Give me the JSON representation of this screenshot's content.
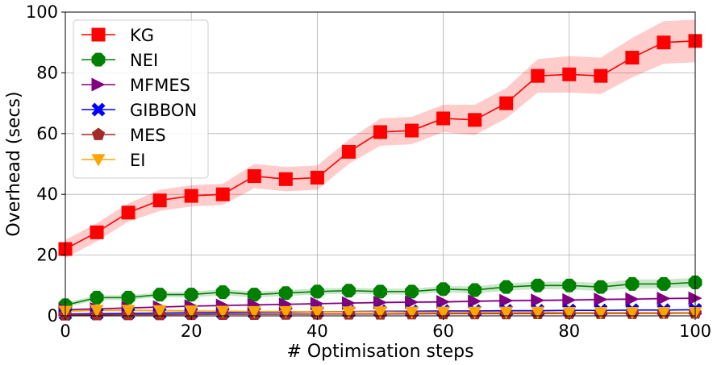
{
  "chart_data": {
    "type": "line",
    "xlabel": "# Optimisation steps",
    "ylabel": "Overhead (secs)",
    "xlim": [
      0,
      100
    ],
    "ylim": [
      0,
      100
    ],
    "xticks": [
      0,
      20,
      40,
      60,
      80,
      100
    ],
    "yticks": [
      0,
      20,
      40,
      60,
      80,
      100
    ],
    "grid": true,
    "legend_position": "top-left",
    "series": [
      {
        "name": "KG",
        "color": "#ff0000",
        "marker": "square",
        "x": [
          0,
          5,
          10,
          15,
          20,
          25,
          30,
          35,
          40,
          45,
          50,
          55,
          60,
          65,
          70,
          75,
          80,
          85,
          90,
          95,
          100
        ],
        "y": [
          22,
          27.5,
          34,
          38,
          39.5,
          40,
          46,
          45,
          45.5,
          54,
          60.5,
          61,
          65,
          64.5,
          70,
          79,
          79.5,
          79,
          85,
          90,
          90.5
        ],
        "band": [
          3,
          3,
          3,
          3.5,
          3.5,
          3.5,
          4,
          4,
          4,
          4,
          4.5,
          4.5,
          4.5,
          5,
          5,
          5.5,
          6,
          6,
          6.5,
          7,
          7
        ]
      },
      {
        "name": "NEI",
        "color": "#008000",
        "marker": "octagon",
        "x": [
          0,
          5,
          10,
          15,
          20,
          25,
          30,
          35,
          40,
          45,
          50,
          55,
          60,
          65,
          70,
          75,
          80,
          85,
          90,
          95,
          100
        ],
        "y": [
          3.5,
          6,
          6,
          7,
          7,
          7.8,
          7,
          7.5,
          8,
          8.3,
          8,
          8,
          8.8,
          8.5,
          9.5,
          10,
          10,
          9.5,
          10.5,
          10.5,
          11
        ],
        "band": [
          0.8,
          0.8,
          0.8,
          0.8,
          1,
          1,
          1,
          1,
          1,
          1,
          1,
          1,
          1,
          1.2,
          1.2,
          1.2,
          1.3,
          1.3,
          1.5,
          1.5,
          1.5
        ]
      },
      {
        "name": "MFMES",
        "color": "#800080",
        "marker": "triangle-right",
        "x": [
          0,
          5,
          10,
          15,
          20,
          25,
          30,
          35,
          40,
          45,
          50,
          55,
          60,
          65,
          70,
          75,
          80,
          85,
          90,
          95,
          100
        ],
        "y": [
          2,
          2.3,
          2.6,
          2.9,
          3.2,
          3.4,
          3.6,
          3.8,
          4,
          4.2,
          4.4,
          4.5,
          4.6,
          4.8,
          5,
          5.1,
          5.2,
          5.4,
          5.5,
          5.7,
          5.8
        ],
        "band": [
          0.3,
          0.3,
          0.3,
          0.3,
          0.3,
          0.3,
          0.3,
          0.3,
          0.3,
          0.3,
          0.4,
          0.4,
          0.4,
          0.4,
          0.4,
          0.4,
          0.4,
          0.4,
          0.4,
          0.4,
          0.4
        ]
      },
      {
        "name": "GIBBON",
        "color": "#0000ff",
        "marker": "x",
        "x": [
          0,
          5,
          10,
          15,
          20,
          25,
          30,
          35,
          40,
          45,
          50,
          55,
          60,
          65,
          70,
          75,
          80,
          85,
          90,
          95,
          100
        ],
        "y": [
          0.6,
          0.7,
          0.8,
          0.9,
          1,
          1,
          1.1,
          1.2,
          1.3,
          1.4,
          1.5,
          1.5,
          1.6,
          1.6,
          1.7,
          1.7,
          1.8,
          1.8,
          1.9,
          1.9,
          2
        ],
        "band": [
          0.1,
          0.1,
          0.1,
          0.1,
          0.1,
          0.1,
          0.1,
          0.1,
          0.1,
          0.1,
          0.1,
          0.1,
          0.1,
          0.1,
          0.1,
          0.1,
          0.1,
          0.1,
          0.1,
          0.1,
          0.1
        ]
      },
      {
        "name": "MES",
        "color": "#a52a2a",
        "marker": "pentagon",
        "x": [
          0,
          5,
          10,
          15,
          20,
          25,
          30,
          35,
          40,
          45,
          50,
          55,
          60,
          65,
          70,
          75,
          80,
          85,
          90,
          95,
          100
        ],
        "y": [
          0.3,
          0.35,
          0.4,
          0.4,
          0.45,
          0.5,
          0.5,
          0.55,
          0.6,
          0.6,
          0.6,
          0.65,
          0.7,
          0.7,
          0.7,
          0.75,
          0.8,
          0.8,
          0.8,
          0.85,
          0.9
        ],
        "band": [
          0.05,
          0.05,
          0.05,
          0.05,
          0.05,
          0.05,
          0.05,
          0.05,
          0.05,
          0.05,
          0.05,
          0.05,
          0.05,
          0.05,
          0.05,
          0.05,
          0.05,
          0.05,
          0.05,
          0.05,
          0.05
        ]
      },
      {
        "name": "EI",
        "color": "#ffa500",
        "marker": "triangle-down",
        "x": [
          0,
          5,
          10,
          15,
          20,
          25,
          30,
          35,
          40,
          45,
          50,
          55,
          60,
          65,
          70,
          75,
          80,
          85,
          90,
          95,
          100
        ],
        "y": [
          1.5,
          1.8,
          1.8,
          1.7,
          1.6,
          1.5,
          1.4,
          1.4,
          1.3,
          1.3,
          1.3,
          1.2,
          1.2,
          1.2,
          1.2,
          1.2,
          1.1,
          1.1,
          1.1,
          1.1,
          1.1
        ],
        "band": [
          0.6,
          0.6,
          0.6,
          0.5,
          0.5,
          0.5,
          0.4,
          0.4,
          0.4,
          0.4,
          0.4,
          0.3,
          0.3,
          0.3,
          0.3,
          0.3,
          0.3,
          0.3,
          0.3,
          0.3,
          0.3
        ]
      }
    ]
  }
}
